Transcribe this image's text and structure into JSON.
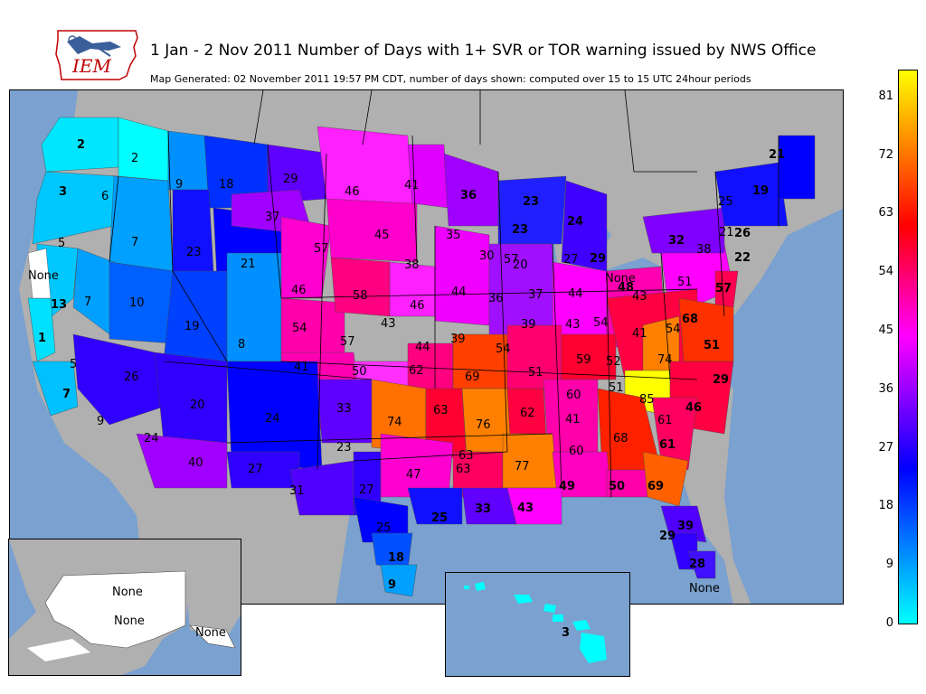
{
  "header": {
    "title": "1 Jan - 2 Nov 2011 Number of Days with 1+ SVR or TOR warning issued by NWS Office",
    "subtitle": "Map Generated: 02 November 2011 19:57 PM CDT, number of days shown: computed over 15 to 15 UTC 24hour periods",
    "logo_text": "IEM"
  },
  "colorbar": {
    "ticks": [
      "81",
      "72",
      "63",
      "54",
      "45",
      "36",
      "27",
      "18",
      "9",
      "0"
    ],
    "min": 0,
    "max": 85,
    "colors": [
      "#00ffff",
      "#0080ff",
      "#0000ff",
      "#8000ff",
      "#ff00ff",
      "#ff0080",
      "#ff0000",
      "#ff8000",
      "#ffff00"
    ]
  },
  "map": {
    "labels": [
      "2",
      "2",
      "9",
      "18",
      "29",
      "46",
      "41",
      "36",
      "23",
      "21",
      "19",
      "25",
      "21",
      "3",
      "6",
      "37",
      "24",
      "26",
      "22",
      "23",
      "57",
      "45",
      "35",
      "30",
      "32",
      "38",
      "5",
      "7",
      "23",
      "21",
      "57",
      "38",
      "20",
      "27",
      "29",
      "None",
      "48",
      "51",
      "None",
      "46",
      "58",
      "46",
      "44",
      "36",
      "37",
      "44",
      "43",
      "13",
      "7",
      "10",
      "57",
      "54",
      "19",
      "8",
      "43",
      "57",
      "44",
      "54",
      "39",
      "54",
      "43",
      "39",
      "68",
      "41",
      "54",
      "52",
      "51",
      "74",
      "1",
      "41",
      "50",
      "62",
      "69",
      "51",
      "59",
      "5",
      "26",
      "51",
      "60",
      "85",
      "29",
      "7",
      "20",
      "24",
      "33",
      "63",
      "62",
      "61",
      "46",
      "9",
      "74",
      "76",
      "41",
      "63",
      "24",
      "23",
      "68",
      "61",
      "40",
      "27",
      "77",
      "63",
      "60",
      "47",
      "31",
      "27",
      "49",
      "50",
      "69",
      "33",
      "43",
      "25",
      "39",
      "25",
      "29",
      "18",
      "28",
      "9",
      "None"
    ],
    "alaska_labels": [
      "None",
      "None",
      "None"
    ],
    "hawaii_labels": [
      "3"
    ]
  }
}
